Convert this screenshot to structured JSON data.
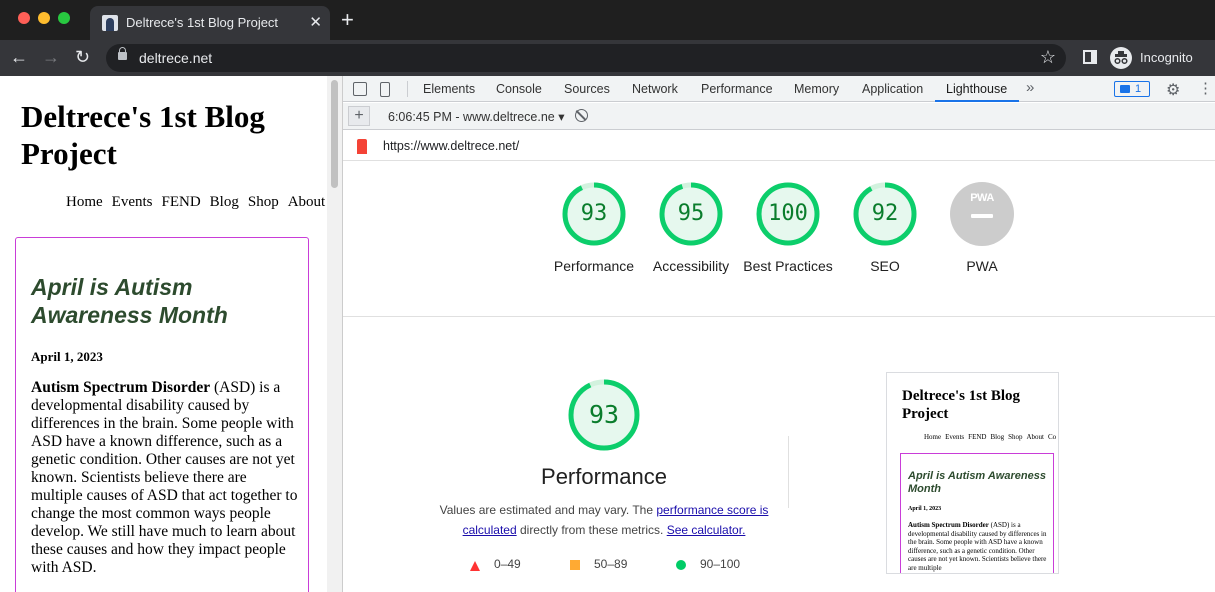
{
  "browser": {
    "tab_title": "Deltrece's 1st Blog Project",
    "tab_close": "✕",
    "new_tab": "+",
    "url": "deltrece.net",
    "incognito_label": "Incognito"
  },
  "webpage": {
    "site_title": "Deltrece's 1st Blog Project",
    "nav": [
      "Home",
      "Events",
      "FEND",
      "Blog",
      "Shop",
      "About",
      "C"
    ],
    "post": {
      "title": "April is Autism Awareness Month",
      "date": "April 1, 2023",
      "lead_bold": "Autism Spectrum Disorder",
      "body": " (ASD) is a developmental disability caused by differences in the brain. Some people with ASD have a known difference, such as a genetic condition. Other causes are not yet known. Scientists believe there are multiple causes of ASD that act together to change the most common ways people develop. We still have much to learn about these causes and how they impact people with ASD."
    }
  },
  "devtools": {
    "tabs": [
      "Elements",
      "Console",
      "Sources",
      "Network",
      "Performance",
      "Memory",
      "Application",
      "Lighthouse"
    ],
    "active_tab": "Lighthouse",
    "more": "»",
    "issues_count": "1",
    "report_selector": "6:06:45 PM - www.deltrece.ne ▾",
    "report_plus": "+",
    "audited_url": "https://www.deltrece.net/",
    "scores": [
      {
        "label": "Performance",
        "value": "93",
        "fraction": 0.93
      },
      {
        "label": "Accessibility",
        "value": "95",
        "fraction": 0.95
      },
      {
        "label": "Best Practices",
        "value": "100",
        "fraction": 1.0
      },
      {
        "label": "SEO",
        "value": "92",
        "fraction": 0.92
      },
      {
        "label": "PWA",
        "value": "PWA",
        "fraction": 0
      }
    ],
    "performance": {
      "score": "93",
      "title": "Performance",
      "desc_prefix": "Values are estimated and may vary. The ",
      "desc_link1": "performance score is calculated",
      "desc_middle": " directly from these metrics. ",
      "desc_link2": "See calculator."
    },
    "legend": {
      "fail": "0–49",
      "average": "50–89",
      "pass": "90–100"
    },
    "colors": {
      "pass": "#0cce6b",
      "pass_bg": "#e6f8ee",
      "pass_text": "#0a7d2c",
      "pwa_gray": "#cccccc"
    },
    "thumbnail": {
      "site_title": "Deltrece's 1st Blog Project",
      "nav": [
        "Home",
        "Events",
        "FEND",
        "Blog",
        "Shop",
        "About",
        "Co"
      ],
      "post_title": "April is Autism Awareness Month",
      "post_date": "April 1, 2023",
      "lead_bold": "Autism Spectrum Disorder",
      "body": " (ASD) is a developmental disability caused by differences in the brain. Some people with ASD have a known difference, such as a genetic condition. Other causes are not yet known. Scientists believe there are multiple"
    }
  }
}
